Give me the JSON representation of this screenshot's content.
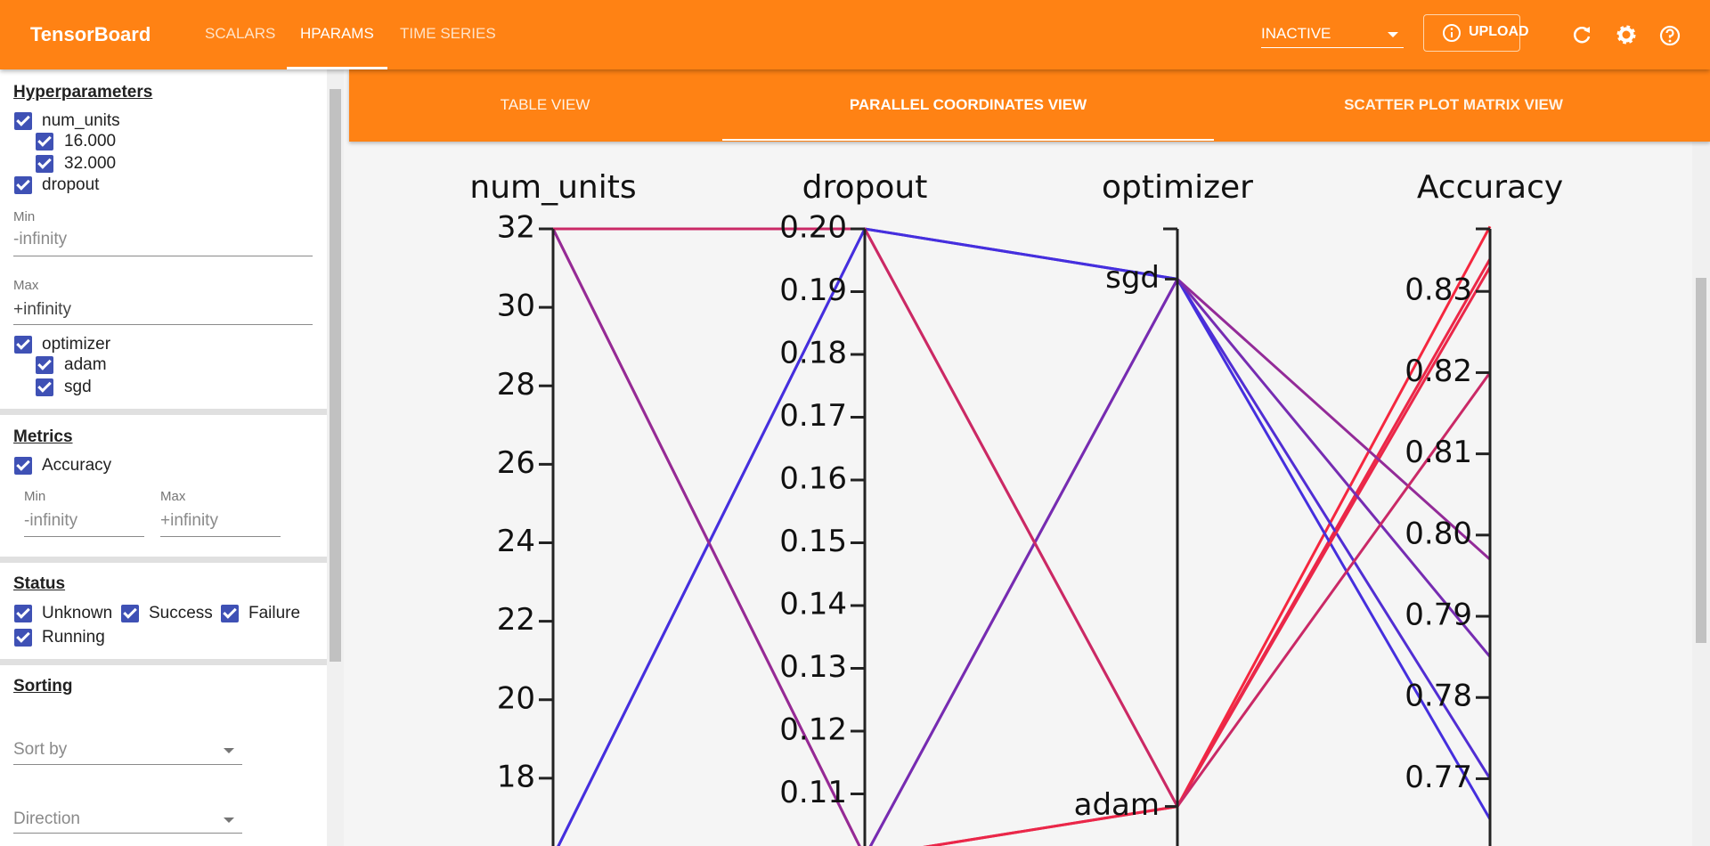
{
  "header": {
    "title": "TensorBoard",
    "tabs": [
      "SCALARS",
      "HPARAMS",
      "TIME SERIES"
    ],
    "run_select": "INACTIVE",
    "upload": "UPLOAD"
  },
  "sidebar": {
    "hyperparameters": {
      "title": "Hyperparameters",
      "items": [
        {
          "label": "num_units",
          "options": [
            "16.000",
            "32.000"
          ]
        },
        {
          "label": "dropout",
          "min_label": "Min",
          "min": "-infinity",
          "max_label": "Max",
          "max": "+infinity"
        },
        {
          "label": "optimizer",
          "options": [
            "adam",
            "sgd"
          ]
        }
      ]
    },
    "metrics": {
      "title": "Metrics",
      "items": [
        {
          "label": "Accuracy",
          "min_label": "Min",
          "min": "-infinity",
          "max_label": "Max",
          "max": "+infinity"
        }
      ]
    },
    "status": {
      "title": "Status",
      "options": [
        "Unknown",
        "Success",
        "Failure",
        "Running"
      ]
    },
    "sorting": {
      "title": "Sorting",
      "sort_by": "Sort by",
      "direction": "Direction"
    }
  },
  "view_tabs": [
    "TABLE VIEW",
    "PARALLEL COORDINATES VIEW",
    "SCATTER PLOT MATRIX VIEW"
  ],
  "chart_data": {
    "type": "parallel_coordinates",
    "color_low": "#3a2fe8",
    "color_high": "#f5273f",
    "axes": [
      {
        "name": "num_units",
        "lim": [
          16,
          32
        ],
        "ticks": [
          18,
          20,
          22,
          24,
          26,
          28,
          30,
          32
        ],
        "values": [
          32,
          32,
          16,
          16,
          16,
          32,
          16,
          32
        ]
      },
      {
        "name": "dropout",
        "lim": [
          0.1,
          0.2
        ],
        "ticks": [
          0.11,
          0.12,
          0.13,
          0.14,
          0.15,
          0.16,
          0.17,
          0.18,
          0.19,
          {
            "value": 0.2,
            "label": "0.20"
          }
        ],
        "values": [
          0.2,
          0.1,
          0.2,
          0.2,
          0.1,
          0.1,
          0.1,
          0.2
        ]
      },
      {
        "name": "optimizer",
        "categories": [
          "adam",
          "sgd"
        ],
        "values": [
          "adam",
          "adam",
          "sgd",
          "sgd",
          "adam",
          "sgd",
          "sgd",
          "adam"
        ]
      },
      {
        "name": "Accuracy",
        "lim": [
          0.7604,
          0.8377
        ],
        "ticks": [
          0.77,
          0.78,
          0.79,
          {
            "value": 0.8,
            "label": "0.80"
          },
          0.81,
          0.82,
          0.83
        ],
        "values": [
          0.838,
          0.834,
          0.77,
          0.765,
          0.833,
          0.797,
          0.785,
          0.82
        ]
      }
    ]
  }
}
